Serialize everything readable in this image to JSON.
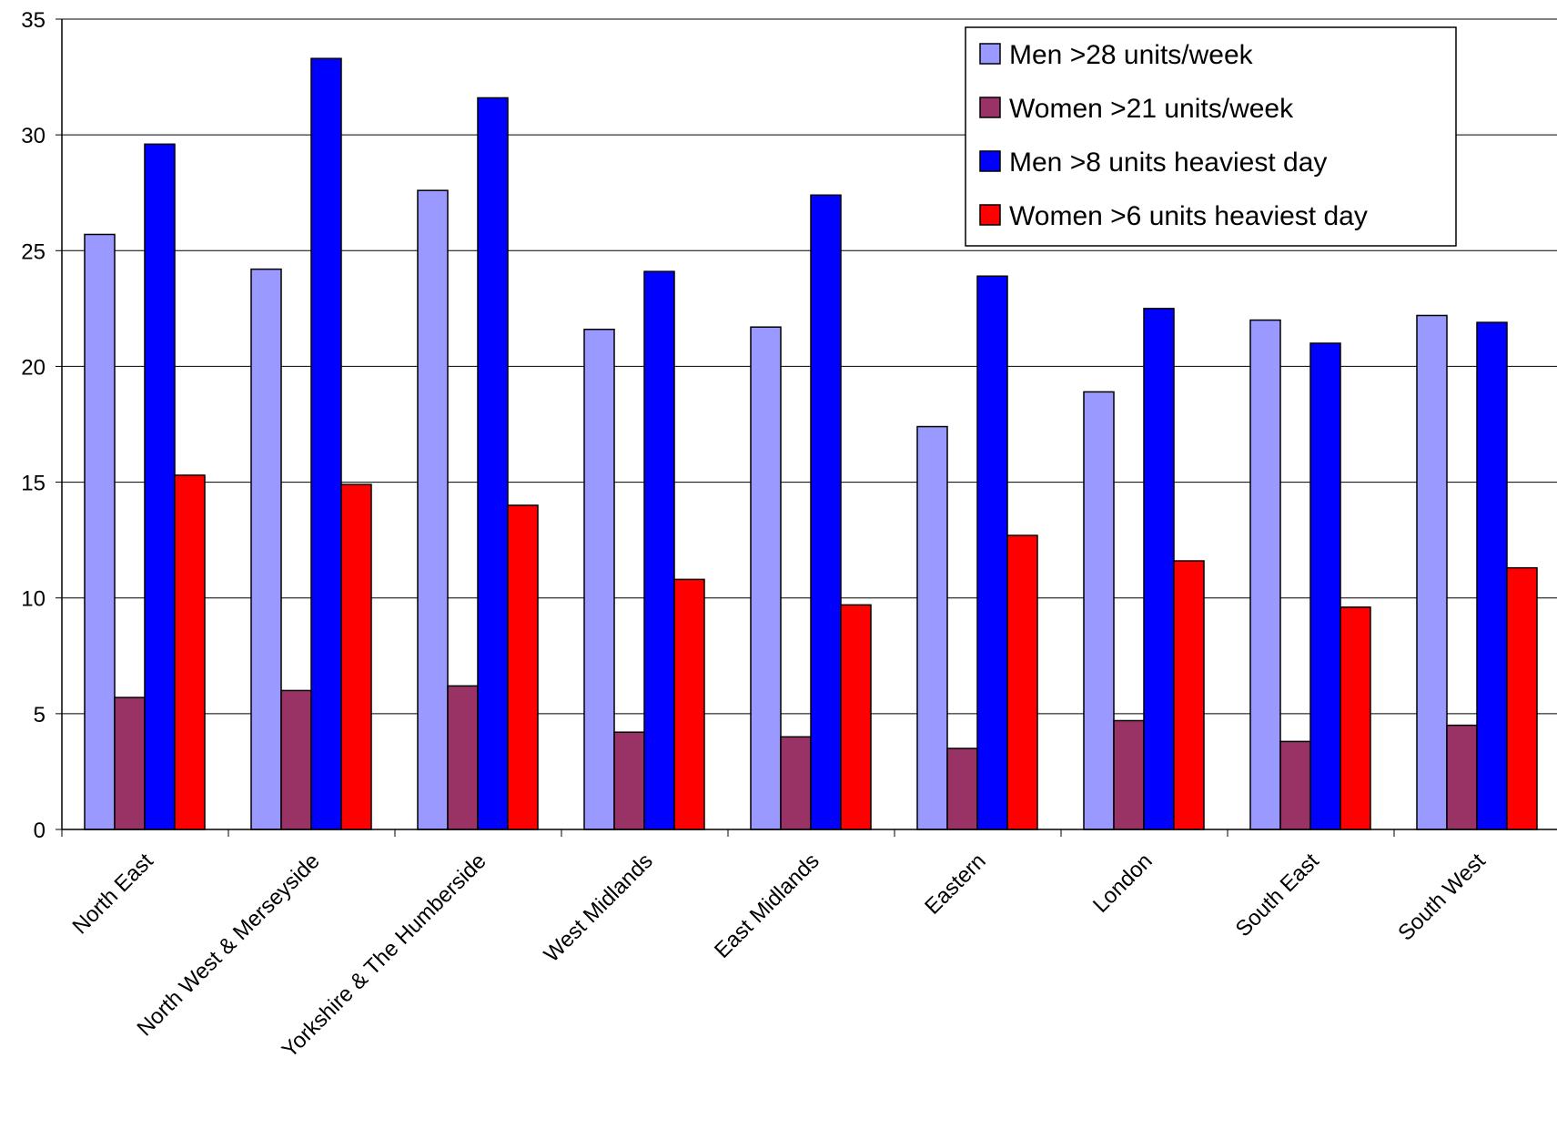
{
  "chart_data": {
    "type": "bar",
    "title": "",
    "xlabel": "",
    "ylabel": "",
    "ylim": [
      0,
      35
    ],
    "yticks": [
      0,
      5,
      10,
      15,
      20,
      25,
      30,
      35
    ],
    "grid": true,
    "legend_position": "top-right",
    "categories": [
      "North East",
      "North West & Merseyside",
      "Yorkshire & The Humberside",
      "West Midlands",
      "East Midlands",
      "Eastern",
      "London",
      "South East",
      "South West"
    ],
    "series": [
      {
        "name": "Men >28 units/week",
        "color": "#9999ff",
        "values": [
          25.7,
          24.2,
          27.6,
          21.6,
          21.7,
          17.4,
          18.9,
          22.0,
          22.2
        ]
      },
      {
        "name": "Women >21 units/week",
        "color": "#993366",
        "values": [
          5.7,
          6.0,
          6.2,
          4.2,
          4.0,
          3.5,
          4.7,
          3.8,
          4.5
        ]
      },
      {
        "name": "Men >8 units heaviest day",
        "color": "#0000ff",
        "values": [
          29.6,
          33.3,
          31.6,
          24.1,
          27.4,
          23.9,
          22.5,
          21.0,
          21.9
        ]
      },
      {
        "name": "Women >6 units heaviest day",
        "color": "#ff0000",
        "values": [
          15.3,
          14.9,
          14.0,
          10.8,
          9.7,
          12.7,
          11.6,
          9.6,
          11.3
        ]
      }
    ]
  }
}
